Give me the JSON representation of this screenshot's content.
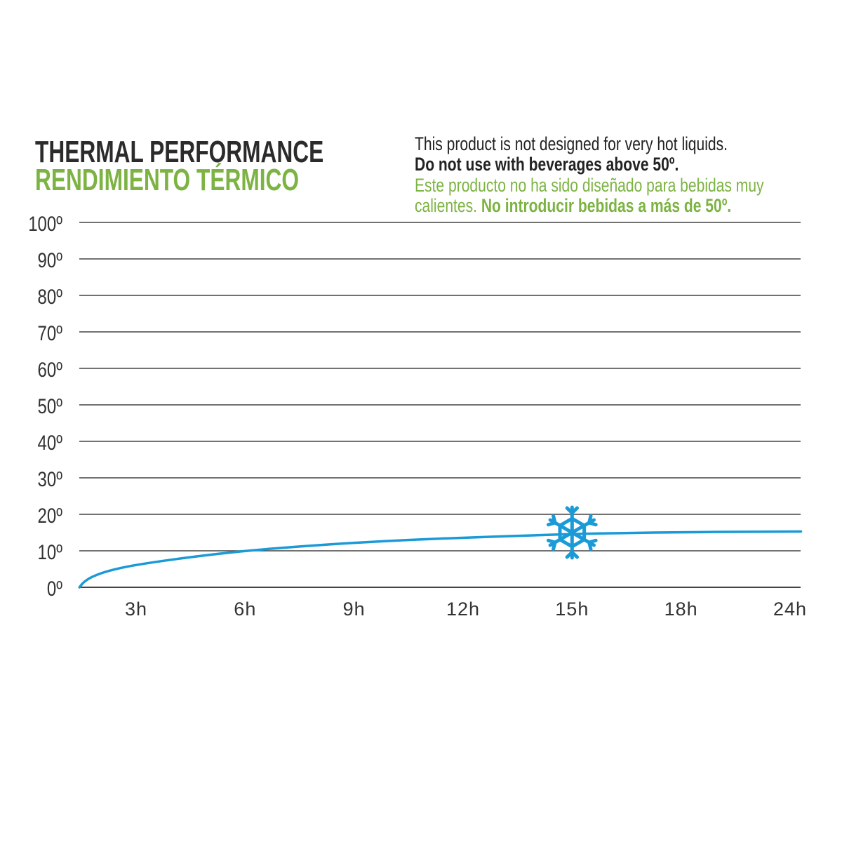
{
  "title": {
    "en": "THERMAL PERFORMANCE",
    "es": "RENDIMIENTO TÉRMICO"
  },
  "note": {
    "line1": "This product is not designed for very hot liquids.",
    "line2": "Do not use with beverages above 50º.",
    "line3": "Este producto no ha sido diseñado para bebidas muy",
    "line4_regular": "calientes. ",
    "line4_bold": "No introducir bebidas a más de 50º."
  },
  "colors": {
    "dark": "#2b2b2b",
    "green": "#7cb342",
    "line": "#1a9ad6",
    "grid": "#444444"
  },
  "chart_data": {
    "type": "line",
    "title": "THERMAL PERFORMANCE",
    "ylim": [
      0,
      100
    ],
    "y_ticks": [
      0,
      10,
      20,
      30,
      40,
      50,
      60,
      70,
      80,
      90,
      100
    ],
    "y_tick_labels": [
      "0º",
      "10º",
      "20º",
      "30º",
      "40º",
      "50º",
      "60º",
      "70º",
      "80º",
      "90º",
      "100º"
    ],
    "x_tick_labels": [
      "3h",
      "6h",
      "9h",
      "12h",
      "15h",
      "18h",
      "24h"
    ],
    "x_tick_positions": [
      1,
      2,
      3,
      4,
      5,
      6,
      7
    ],
    "xlim": [
      0.48,
      7.1
    ],
    "grid": true,
    "series": [
      {
        "name": "cold",
        "icon": "snowflake-icon",
        "icon_at": {
          "x": 5,
          "y": 15
        },
        "points": [
          [
            0.48,
            0
          ],
          [
            0.52,
            1.5
          ],
          [
            0.6,
            3
          ],
          [
            0.75,
            4.6
          ],
          [
            1,
            6.2
          ],
          [
            1.5,
            8.3
          ],
          [
            2,
            10
          ],
          [
            2.5,
            11.2
          ],
          [
            3,
            12.2
          ],
          [
            3.5,
            13
          ],
          [
            4,
            13.6
          ],
          [
            4.5,
            14.1
          ],
          [
            5,
            14.6
          ],
          [
            5.5,
            14.9
          ],
          [
            6,
            15.1
          ],
          [
            6.5,
            15.2
          ],
          [
            7.1,
            15.3
          ]
        ]
      }
    ]
  }
}
